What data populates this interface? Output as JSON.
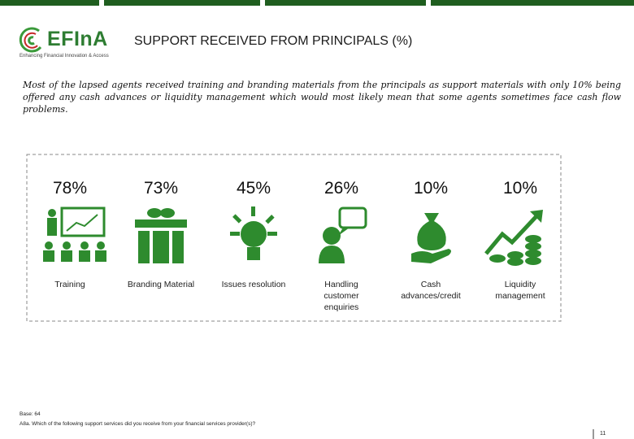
{
  "header": {
    "logo": "EFInA",
    "tagline": "Enhancing Financial Innovation & Access",
    "title": "SUPPORT RECEIVED FROM PRINCIPALS (%)"
  },
  "intro": "Most of the lapsed agents received training and branding materials from the principals as support materials with only 10% being offered any cash advances or liquidity management which would most likely mean that some agents sometimes face cash flow problems.",
  "items": [
    {
      "value": "78%",
      "label": "Training"
    },
    {
      "value": "73%",
      "label": "Branding Material"
    },
    {
      "value": "45%",
      "label": "Issues resolution"
    },
    {
      "value": "26%",
      "label": "Handling customer enquiries"
    },
    {
      "value": "10%",
      "label": "Cash advances/credit"
    },
    {
      "value": "10%",
      "label": "Liquidity management"
    }
  ],
  "footer": {
    "base": "Base: 64",
    "question": "A8a. Which of the following support services did you receive from your financial services provider(s)?",
    "page": "11"
  }
}
